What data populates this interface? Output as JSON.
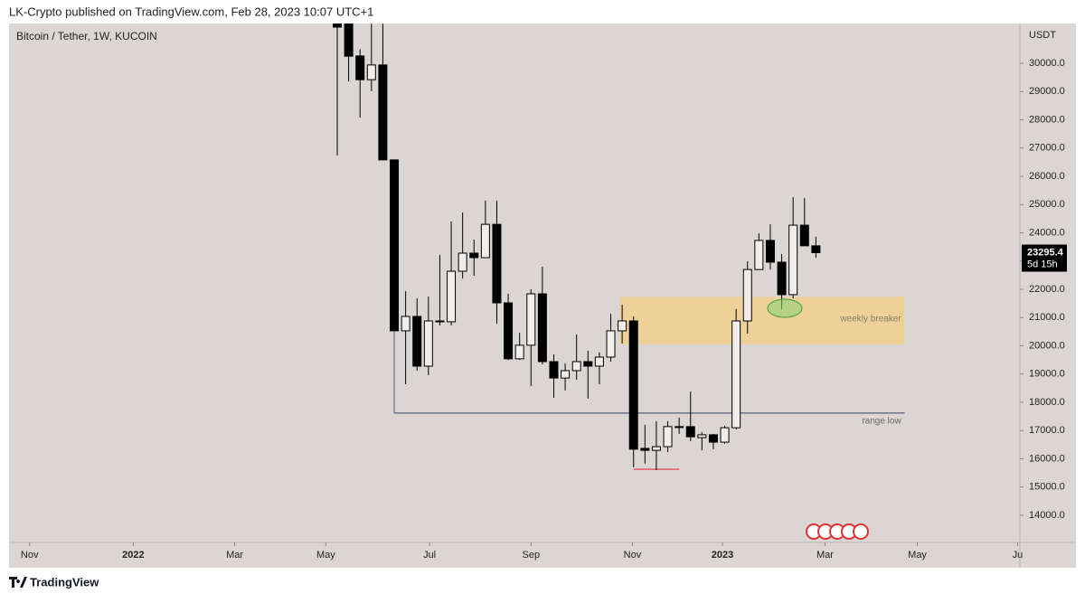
{
  "header": {
    "published": "LK-Crypto published on TradingView.com, Feb 28, 2023 10:07 UTC+1"
  },
  "footer": {
    "brand": "TradingView"
  },
  "chart_data": {
    "type": "candlestick",
    "title": "Bitcoin / Tether, 1W, KUCOIN",
    "y_label": "USDT",
    "up_color": "#f2ede8",
    "down_color": "#000000",
    "x": [
      0,
      1,
      2,
      3,
      4,
      5,
      6,
      7,
      8,
      9,
      10,
      11,
      12,
      13,
      14,
      15,
      16,
      17,
      18,
      19,
      20,
      21,
      22,
      23,
      24,
      25,
      26,
      27,
      28,
      29,
      30,
      31,
      32,
      33,
      34,
      35,
      36,
      37,
      38,
      39,
      40,
      41,
      42
    ],
    "open": [
      31400,
      31400,
      30260,
      29420,
      29940,
      26580,
      20530,
      21040,
      19280,
      20860,
      20850,
      22640,
      23280,
      23120,
      24300,
      21520,
      19540,
      20020,
      21840,
      19440,
      18860,
      19120,
      19440,
      19280,
      19600,
      20530,
      20880,
      16370,
      16300,
      16430,
      17110,
      17140,
      16750,
      16850,
      16590,
      17100,
      20880,
      22700,
      23730,
      22960,
      21810,
      24270,
      23540
    ],
    "high": [
      31400,
      31400,
      30500,
      31400,
      31400,
      26580,
      21940,
      21680,
      21740,
      23220,
      24400,
      24720,
      23760,
      25140,
      25140,
      21840,
      20460,
      22000,
      22800,
      19700,
      19380,
      20400,
      19820,
      19760,
      21140,
      21450,
      21040,
      17200,
      17330,
      17330,
      17460,
      18380,
      16940,
      16880,
      17170,
      21300,
      22990,
      23980,
      24300,
      23250,
      25260,
      25230,
      23860
    ],
    "low": [
      26740,
      29360,
      28080,
      29010,
      26580,
      20530,
      18640,
      19120,
      18960,
      20720,
      20720,
      22380,
      22480,
      23180,
      20780,
      19500,
      19500,
      18580,
      19340,
      18160,
      18420,
      18800,
      18130,
      18640,
      19440,
      20080,
      15700,
      15830,
      15600,
      16240,
      16880,
      16620,
      16300,
      16340,
      16530,
      17040,
      20430,
      22700,
      22700,
      21300,
      21680,
      23540,
      23120
    ],
    "close": [
      31280,
      30250,
      29420,
      29940,
      26580,
      20530,
      21040,
      19280,
      20880,
      20880,
      22640,
      23280,
      23120,
      24300,
      21520,
      19540,
      20020,
      21840,
      19440,
      18860,
      19120,
      19440,
      19280,
      19600,
      20530,
      20880,
      16340,
      16300,
      16430,
      17140,
      17140,
      16780,
      16850,
      16590,
      17100,
      20880,
      22700,
      23730,
      22960,
      21810,
      24270,
      23540,
      23295.4
    ],
    "countdown": "5d 15h",
    "xlim": [
      -28.8,
      59.9
    ],
    "xticks": [
      {
        "value": -27,
        "label": "Nov"
      },
      {
        "value": -17.9,
        "label": "2022"
      },
      {
        "value": -9,
        "label": "Mar"
      },
      {
        "value": -1,
        "label": "May"
      },
      {
        "value": 8.1,
        "label": "Jul"
      },
      {
        "value": 17,
        "label": "Sep"
      },
      {
        "value": 25.9,
        "label": "Nov"
      },
      {
        "value": 33.8,
        "label": "2023"
      },
      {
        "value": 42.8,
        "label": "Mar"
      },
      {
        "value": 50.9,
        "label": "May"
      },
      {
        "value": 59.7,
        "label": "Ju"
      }
    ],
    "ylim": [
      13040,
      31408
    ],
    "yticks": [
      {
        "value": 14000,
        "label": "14000.0"
      },
      {
        "value": 15000,
        "label": "15000.0"
      },
      {
        "value": 16000,
        "label": "16000.0"
      },
      {
        "value": 17000,
        "label": "17000.0"
      },
      {
        "value": 18000,
        "label": "18000.0"
      },
      {
        "value": 19000,
        "label": "19000.0"
      },
      {
        "value": 20000,
        "label": "20000.0"
      },
      {
        "value": 21000,
        "label": "21000.0"
      },
      {
        "value": 22000,
        "label": "22000.0"
      },
      {
        "value": 23000,
        "label": "23000.0"
      },
      {
        "value": 24000,
        "label": "24000.0"
      },
      {
        "value": 25000,
        "label": "25000.0"
      },
      {
        "value": 26000,
        "label": "26000.0"
      },
      {
        "value": 27000,
        "label": "27000.0"
      },
      {
        "value": 28000,
        "label": "28000.0"
      },
      {
        "value": 29000,
        "label": "29000.0"
      },
      {
        "value": 30000,
        "label": "30000.0"
      }
    ],
    "zones": [
      {
        "label": "weekly breaker",
        "x": [
          24.8,
          49.8
        ],
        "y": [
          20050,
          21730
        ],
        "color": "#f3cf86"
      }
    ],
    "levels": [
      {
        "label": "range low",
        "x": [
          5,
          49.8
        ],
        "y": 17620,
        "color": "#55607a"
      },
      {
        "x": [
          26,
          30
        ],
        "y": 15630,
        "color": "#e8323c"
      }
    ]
  }
}
